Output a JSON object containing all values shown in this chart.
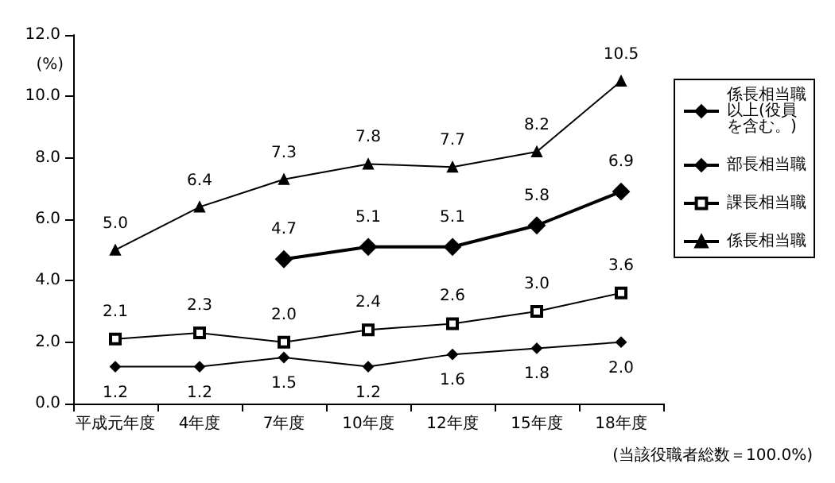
{
  "chart_data": {
    "type": "line",
    "ylabel": "(%)",
    "categories": [
      "平成元年度",
      "4年度",
      "7年度",
      "10年度",
      "12年度",
      "15年度",
      "18年度"
    ],
    "ylim": [
      0,
      12
    ],
    "yticks": [
      {
        "value": 0,
        "label": "0.0"
      },
      {
        "value": 2,
        "label": "2.0"
      },
      {
        "value": 4,
        "label": "4.0"
      },
      {
        "value": 6,
        "label": "6.0"
      },
      {
        "value": 8,
        "label": "8.0"
      },
      {
        "value": 10,
        "label": "10.0"
      },
      {
        "value": 12,
        "label": "12.0"
      }
    ],
    "grid": false,
    "legend": "right",
    "annotations": [
      "(当該役職者総数＝100.0%)"
    ],
    "series": [
      {
        "name": "係長相当職以上(役員を含む。)",
        "color": "#000000",
        "marker": "diamond",
        "values": [
          null,
          null,
          4.7,
          5.1,
          5.1,
          5.8,
          6.9
        ],
        "value_labels": [
          null,
          null,
          "4.7",
          "5.1",
          "5.1",
          "5.8",
          "6.9"
        ]
      },
      {
        "name": "部長相当職",
        "color": "#000000",
        "marker": "diamond",
        "values": [
          1.2,
          1.2,
          1.5,
          1.2,
          1.6,
          1.8,
          2.0
        ],
        "value_labels": [
          "1.2",
          "1.2",
          "1.5",
          "1.2",
          "1.6",
          "1.8",
          "2.0"
        ]
      },
      {
        "name": "課長相当職",
        "color": "#000000",
        "marker": "square",
        "values": [
          2.1,
          2.3,
          2.0,
          2.4,
          2.6,
          3.0,
          3.6
        ],
        "value_labels": [
          "2.1",
          "2.3",
          "2.0",
          "2.4",
          "2.6",
          "3.0",
          "3.6"
        ]
      },
      {
        "name": "係長相当職",
        "color": "#000000",
        "marker": "triangle",
        "values": [
          5.0,
          6.4,
          7.3,
          7.8,
          7.7,
          8.2,
          10.5
        ],
        "value_labels": [
          "5.0",
          "6.4",
          "7.3",
          "7.8",
          "7.7",
          "8.2",
          "10.5"
        ]
      }
    ]
  }
}
